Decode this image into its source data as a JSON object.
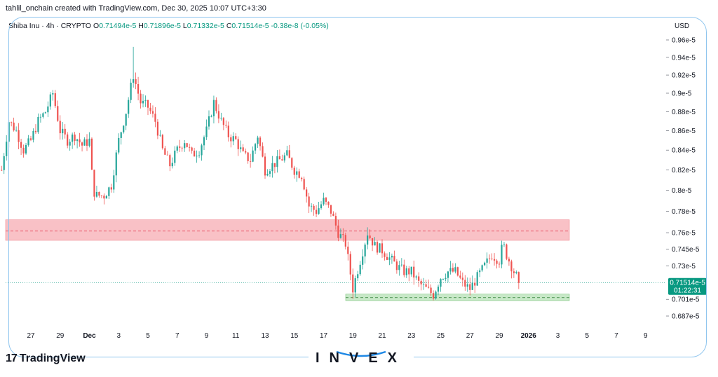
{
  "header": {
    "credit": "tahlil_onchain created with TradingView.com, Dec 30, 2025 10:07 UTC+3:30"
  },
  "legend": {
    "symbol": "Shiba Inu · 4h · CRYPTO",
    "o_label": "O",
    "o_value": "0.71494e-5",
    "h_label": "H",
    "h_value": "0.71896e-5",
    "l_label": "L",
    "l_value": "0.71332e-5",
    "c_label": "C",
    "c_value": "0.71514e-5",
    "change": "-0.38e-8 (-0.05%)"
  },
  "axis": {
    "currency": "USD"
  },
  "price_badge": {
    "price": "0.71514e-5",
    "countdown": "01:22:31"
  },
  "branding": {
    "tradingview": "TradingView",
    "tradingview_mark": "17",
    "watermark": "INVEX"
  },
  "colors": {
    "up": "#26a69a",
    "down": "#ef5350",
    "resistance": "#f7b2b8",
    "support": "#b9e2b9",
    "badge": "#089981",
    "frame": "#8ec5ee"
  },
  "chart_data": {
    "type": "candlestick",
    "timeframe": "4h",
    "x_tick_labels": [
      "27",
      "29",
      "Dec",
      "3",
      "5",
      "7",
      "9",
      "11",
      "13",
      "15",
      "17",
      "19",
      "21",
      "23",
      "25",
      "27",
      "29",
      "2026",
      "3",
      "5",
      "7",
      "9"
    ],
    "y_tick_labels": [
      "0.96e-5",
      "0.94e-5",
      "0.92e-5",
      "0.9e-5",
      "0.88e-5",
      "0.86e-5",
      "0.84e-5",
      "0.82e-5",
      "0.8e-5",
      "0.78e-5",
      "0.76e-5",
      "0.745e-5",
      "0.73e-5",
      "0.701e-5",
      "0.687e-5"
    ],
    "y_ticks": [
      0.96,
      0.94,
      0.92,
      0.9,
      0.88,
      0.86,
      0.84,
      0.82,
      0.8,
      0.78,
      0.76,
      0.745,
      0.73,
      0.701,
      0.687
    ],
    "y_unit": "1e-5 USD",
    "y_scale": "log",
    "ylim": [
      0.678,
      0.973
    ],
    "last_price": 0.71514,
    "resistance_zone": [
      0.753,
      0.772
    ],
    "resistance_level": 0.7615,
    "support_zone": [
      0.7,
      0.7055
    ],
    "support_level": 0.7025,
    "close_path": [
      [
        "Nov 25 00:00",
        0.82
      ],
      [
        "Nov 25 12:00",
        0.87
      ],
      [
        "Nov 26 00:00",
        0.86
      ],
      [
        "Nov 26 12:00",
        0.84
      ],
      [
        "Nov 27 00:00",
        0.85
      ],
      [
        "Nov 27 12:00",
        0.87
      ],
      [
        "Nov 28 00:00",
        0.88
      ],
      [
        "Nov 28 12:00",
        0.9
      ],
      [
        "Nov 29 00:00",
        0.86
      ],
      [
        "Nov 29 12:00",
        0.85
      ],
      [
        "Nov 30 00:00",
        0.855
      ],
      [
        "Nov 30 12:00",
        0.845
      ],
      [
        "Dec 1 00:00",
        0.85
      ],
      [
        "Dec 1 06:00",
        0.8
      ],
      [
        "Dec 1 12:00",
        0.795
      ],
      [
        "Dec 2 00:00",
        0.795
      ],
      [
        "Dec 2 12:00",
        0.805
      ],
      [
        "Dec 3 00:00",
        0.85
      ],
      [
        "Dec 3 12:00",
        0.88
      ],
      [
        "Dec 4 00:00",
        0.92
      ],
      [
        "Dec 4 12:00",
        0.89
      ],
      [
        "Dec 5 00:00",
        0.885
      ],
      [
        "Dec 5 12:00",
        0.87
      ],
      [
        "Dec 6 00:00",
        0.84
      ],
      [
        "Dec 6 12:00",
        0.825
      ],
      [
        "Dec 7 00:00",
        0.84
      ],
      [
        "Dec 7 12:00",
        0.85
      ],
      [
        "Dec 8 00:00",
        0.835
      ],
      [
        "Dec 8 12:00",
        0.84
      ],
      [
        "Dec 9 00:00",
        0.86
      ],
      [
        "Dec 9 12:00",
        0.89
      ],
      [
        "Dec 10 00:00",
        0.87
      ],
      [
        "Dec 10 12:00",
        0.855
      ],
      [
        "Dec 11 00:00",
        0.85
      ],
      [
        "Dec 11 12:00",
        0.835
      ],
      [
        "Dec 12 00:00",
        0.83
      ],
      [
        "Dec 12 12:00",
        0.855
      ],
      [
        "Dec 13 00:00",
        0.82
      ],
      [
        "Dec 13 12:00",
        0.825
      ],
      [
        "Dec 14 00:00",
        0.83
      ],
      [
        "Dec 14 12:00",
        0.835
      ],
      [
        "Dec 15 00:00",
        0.82
      ],
      [
        "Dec 15 12:00",
        0.815
      ],
      [
        "Dec 16 00:00",
        0.785
      ],
      [
        "Dec 16 12:00",
        0.78
      ],
      [
        "Dec 17 00:00",
        0.79
      ],
      [
        "Dec 17 12:00",
        0.78
      ],
      [
        "Dec 18 00:00",
        0.76
      ],
      [
        "Dec 18 12:00",
        0.75
      ],
      [
        "Dec 19 00:00",
        0.71
      ],
      [
        "Dec 19 12:00",
        0.735
      ],
      [
        "Dec 20 00:00",
        0.76
      ],
      [
        "Dec 20 12:00",
        0.748
      ],
      [
        "Dec 21 00:00",
        0.744
      ],
      [
        "Dec 21 12:00",
        0.737
      ],
      [
        "Dec 22 00:00",
        0.73
      ],
      [
        "Dec 22 12:00",
        0.725
      ],
      [
        "Dec 23 00:00",
        0.725
      ],
      [
        "Dec 23 12:00",
        0.715
      ],
      [
        "Dec 24 00:00",
        0.71
      ],
      [
        "Dec 24 12:00",
        0.705
      ],
      [
        "Dec 25 00:00",
        0.72
      ],
      [
        "Dec 25 12:00",
        0.725
      ],
      [
        "Dec 26 00:00",
        0.725
      ],
      [
        "Dec 26 12:00",
        0.715
      ],
      [
        "Dec 27 00:00",
        0.71
      ],
      [
        "Dec 27 12:00",
        0.72
      ],
      [
        "Dec 28 00:00",
        0.73
      ],
      [
        "Dec 28 12:00",
        0.74
      ],
      [
        "Dec 29 00:00",
        0.735
      ],
      [
        "Dec 29 06:00",
        0.75
      ],
      [
        "Dec 29 12:00",
        0.74
      ],
      [
        "Dec 30 00:00",
        0.725
      ],
      [
        "Dec 30 10:00",
        0.71514
      ]
    ],
    "notable_points": [
      {
        "time": "Dec 4 00:00",
        "high": 0.952
      },
      {
        "time": "Dec 19 00:00",
        "low": 0.7015
      },
      {
        "time": "Dec 20 00:00",
        "high": 0.765
      },
      {
        "time": "Dec 24 12:00",
        "low": 0.701
      },
      {
        "time": "Dec 29 06:00",
        "high": 0.757
      }
    ],
    "title": "",
    "xlabel": "",
    "ylabel": ""
  }
}
